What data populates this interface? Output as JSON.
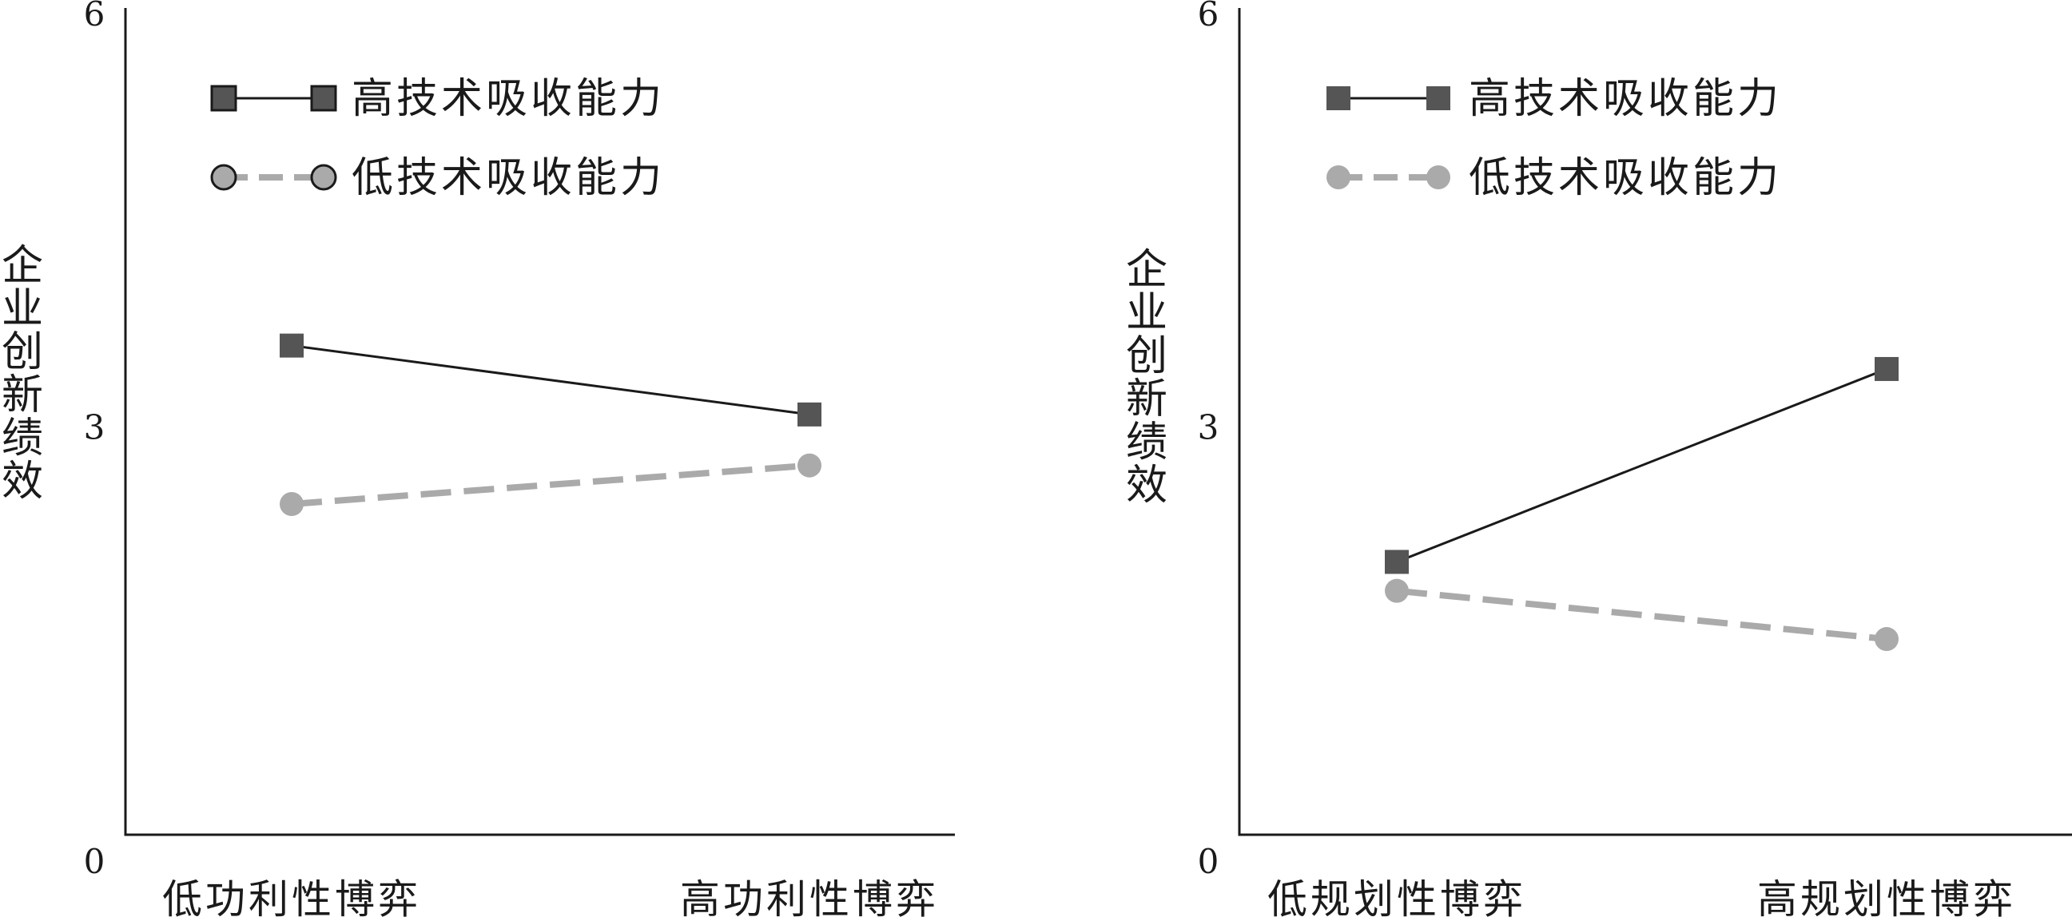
{
  "chart_data": [
    {
      "type": "line",
      "title": "",
      "xlabel": "",
      "ylabel": "企业创新绩效",
      "ylim": [
        0,
        6
      ],
      "yticks": [
        0,
        3,
        6
      ],
      "categories": [
        "低功利性博弈",
        "高功利性博弈"
      ],
      "legend_position": "top-left",
      "series": [
        {
          "name": "高技术吸收能力",
          "values": [
            3.55,
            3.05
          ],
          "marker": "square",
          "line": "solid",
          "color": "#1a1a1a",
          "marker_color": "#555555"
        },
        {
          "name": "低技术吸收能力",
          "values": [
            2.4,
            2.68
          ],
          "marker": "circle",
          "line": "dashed",
          "color": "#aaaaaa",
          "marker_color": "#aaaaaa"
        }
      ]
    },
    {
      "type": "line",
      "title": "",
      "xlabel": "",
      "ylabel": "企业创新绩效",
      "ylim": [
        0,
        6
      ],
      "yticks": [
        0,
        3,
        6
      ],
      "categories": [
        "低规划性博弈",
        "高规划性博弈"
      ],
      "legend_position": "top-left",
      "series": [
        {
          "name": "高技术吸收能力",
          "values": [
            1.98,
            3.38
          ],
          "marker": "square",
          "line": "solid",
          "color": "#1a1a1a",
          "marker_color": "#555555"
        },
        {
          "name": "低技术吸收能力",
          "values": [
            1.77,
            1.42
          ],
          "marker": "circle",
          "line": "dashed",
          "color": "#aaaaaa",
          "marker_color": "#aaaaaa"
        }
      ]
    }
  ]
}
